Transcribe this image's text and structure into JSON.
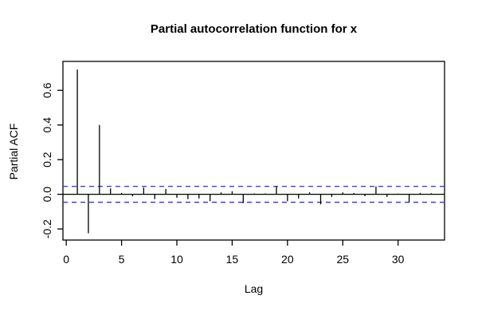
{
  "window": {
    "title": "Partial autocorrelation function for x"
  },
  "chart_data": {
    "type": "bar",
    "style": "stem-plot (R pacf)",
    "title": "Partial autocorrelation function for x",
    "xlabel": "Lag",
    "ylabel": "Partial ACF",
    "x": [
      1,
      2,
      3,
      4,
      5,
      6,
      7,
      8,
      9,
      10,
      11,
      12,
      13,
      14,
      15,
      16,
      17,
      18,
      19,
      20,
      21,
      22,
      23,
      24,
      25,
      26,
      27,
      28,
      29,
      30,
      31,
      32,
      33
    ],
    "values": [
      0.72,
      -0.225,
      0.4,
      0.034,
      0.008,
      -0.012,
      0.039,
      -0.028,
      0.031,
      -0.02,
      -0.028,
      -0.024,
      -0.04,
      0.011,
      0.018,
      -0.051,
      0.005,
      0.005,
      0.046,
      -0.04,
      -0.024,
      0.011,
      -0.058,
      -0.015,
      0.011,
      0.008,
      -0.011,
      0.046,
      -0.015,
      0.004,
      -0.046,
      0.008,
      0.006
    ],
    "confidence_bounds": [
      0.046,
      -0.046
    ],
    "zero_line": 0,
    "xlim": [
      -0.3,
      34.2
    ],
    "ylim": [
      -0.264,
      0.767
    ],
    "xticks": {
      "values": [
        0,
        5,
        10,
        15,
        20,
        25,
        30
      ],
      "labels": [
        "0",
        "5",
        "10",
        "15",
        "20",
        "25",
        "30"
      ]
    },
    "yticks": {
      "values": [
        -0.2,
        0,
        0.2,
        0.4,
        0.6
      ],
      "labels": [
        "-0.2",
        "0.0",
        "0.2",
        "0.4",
        "0.6"
      ]
    },
    "grid": "off",
    "legend": "none",
    "colors": {
      "spike": "#000000",
      "confidence_dashed": "#3d3deb",
      "axis": "#000000",
      "background": "#ffffff"
    }
  }
}
